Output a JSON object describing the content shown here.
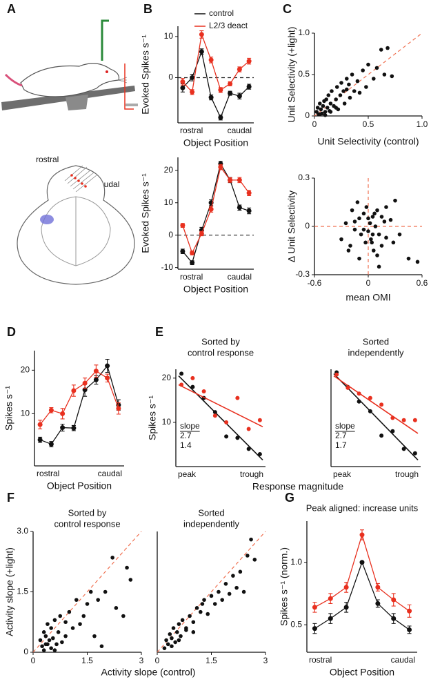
{
  "illustration": {
    "panel": "A",
    "rostral": "rostral",
    "caudal": "caudal"
  },
  "chart_data": [
    {
      "type": "line",
      "panel": "B",
      "ylabel": "Evoked Spikes s⁻¹",
      "xlabel": "Object Position",
      "x_end_labels": [
        "rostral",
        "caudal"
      ],
      "categories": [
        null,
        null,
        null,
        null,
        null,
        null,
        null,
        null
      ],
      "ylim": [
        -11,
        12.5
      ],
      "yticks": [
        0,
        10
      ],
      "hlines": [
        0
      ],
      "ref_color": "#222",
      "series": [
        {
          "name": "control",
          "color": "#111111",
          "values": [
            -2.5,
            0,
            6.3,
            -4.8,
            -9.7,
            -3.8,
            -4.5,
            -2.2
          ],
          "errors": [
            1,
            0.8,
            0.7,
            0.6,
            0.6,
            0.5,
            0.7,
            0.6
          ]
        },
        {
          "name": "L2/3 deact",
          "color": "#e8301f",
          "values": [
            -1,
            -3.5,
            10.5,
            4.3,
            -3,
            -1.5,
            2,
            4
          ],
          "errors": [
            0.8,
            0.6,
            0.9,
            0.7,
            0.6,
            0.5,
            0.6,
            0.7
          ]
        }
      ]
    },
    {
      "type": "line",
      "ylabel": "Evoked Spikes s⁻¹",
      "xlabel": "Object Position",
      "x_end_labels": [
        "rostral",
        "caudal"
      ],
      "categories": [
        null,
        null,
        null,
        null,
        null,
        null,
        null,
        null
      ],
      "ylim": [
        -10.5,
        24
      ],
      "yticks": [
        -10,
        0,
        10,
        20
      ],
      "hlines": [
        0
      ],
      "ref_color": "#222",
      "series": [
        {
          "color": "#111111",
          "values": [
            -5,
            -8.5,
            1.5,
            10,
            22,
            17,
            8.5,
            7.5
          ],
          "errors": [
            0.7,
            0.6,
            0.9,
            0.9,
            0.8,
            0.8,
            0.8,
            0.9
          ]
        },
        {
          "color": "#e8301f",
          "values": [
            3,
            -5.5,
            0.5,
            8,
            21,
            17,
            17,
            13
          ],
          "errors": [
            0.6,
            0.6,
            0.7,
            0.9,
            0.8,
            0.7,
            0.8,
            0.8
          ]
        }
      ]
    },
    {
      "type": "scatter",
      "panel": "C",
      "xlabel": "Unit Selectivity (control)",
      "ylabel": "Unit Selectivity (+light)",
      "xlim": [
        0,
        1
      ],
      "ylim": [
        0,
        1
      ],
      "xticks": [
        0,
        0.5,
        {
          "value": 1,
          "label": "1.0"
        }
      ],
      "yticks": [
        0,
        0.5,
        {
          "value": 1,
          "label": "1.0"
        }
      ],
      "diagonal": true,
      "ref_color": "#f07050",
      "series": [
        {
          "color": "#111111",
          "x": [
            0.02,
            0.03,
            0.04,
            0.05,
            0.06,
            0.07,
            0.08,
            0.09,
            0.1,
            0.11,
            0.12,
            0.13,
            0.14,
            0.15,
            0.16,
            0.18,
            0.2,
            0.21,
            0.22,
            0.24,
            0.25,
            0.27,
            0.28,
            0.3,
            0.32,
            0.33,
            0.35,
            0.37,
            0.4,
            0.42,
            0.45,
            0.48,
            0.5,
            0.55,
            0.58,
            0.62,
            0.65,
            0.68,
            0.72,
            0.05,
            0.1,
            0.15,
            0.2,
            0.3
          ],
          "y": [
            0.05,
            0.1,
            0.02,
            0.15,
            0.08,
            0.03,
            0.12,
            0.18,
            0.05,
            0.2,
            0.1,
            0.25,
            0.06,
            0.15,
            0.3,
            0.12,
            0.2,
            0.35,
            0.08,
            0.25,
            0.4,
            0.3,
            0.15,
            0.45,
            0.38,
            0.22,
            0.5,
            0.3,
            0.42,
            0.28,
            0.55,
            0.35,
            0.62,
            0.45,
            0.58,
            0.8,
            0.5,
            0.82,
            0.48,
            0.02,
            0.01,
            0.05,
            0.1,
            0.32
          ]
        }
      ]
    },
    {
      "type": "scatter",
      "xlabel": "mean OMI",
      "ylabel": "Δ Unit Selectivity",
      "xlim": [
        -0.6,
        0.6
      ],
      "ylim": [
        -0.3,
        0.3
      ],
      "xticks": [
        -0.6,
        0,
        0.6
      ],
      "yticks": [
        -0.3,
        0,
        0.3
      ],
      "hlines": [
        0
      ],
      "vlines": [
        0
      ],
      "ref_color": "#f07050",
      "series": [
        {
          "color": "#111111",
          "x": [
            -0.3,
            -0.25,
            -0.2,
            -0.18,
            -0.15,
            -0.12,
            -0.1,
            -0.08,
            -0.05,
            -0.03,
            -0.02,
            0,
            0.02,
            0.03,
            0.05,
            0.06,
            0.08,
            0.1,
            0.12,
            0.15,
            0.18,
            0.2,
            0.25,
            0.3,
            0.35,
            0.45,
            0.55,
            -0.22,
            -0.1,
            -0.05,
            0,
            0.04,
            0.07,
            0.1,
            0.15,
            0.2,
            -0.15,
            0.05,
            0.12,
            0.28
          ],
          "y": [
            -0.08,
            0.02,
            -0.12,
            0.1,
            -0.02,
            0.15,
            0.05,
            -0.05,
            0.08,
            -0.1,
            0.12,
            -0.03,
            0.02,
            -0.08,
            0.06,
            -0.15,
            0,
            0.1,
            -0.05,
            -0.12,
            0.03,
            -0.07,
            0.04,
            0.16,
            -0.05,
            -0.2,
            -0.22,
            -0.15,
            -0.2,
            -0.02,
            0.05,
            -0.1,
            0.08,
            -0.18,
            0.06,
            0.12,
            0.03,
            -0.05,
            -0.25,
            -0.1
          ]
        }
      ]
    },
    {
      "type": "line",
      "panel": "D",
      "ylabel": "Spikes s⁻¹",
      "xlabel": "Object Position",
      "x_end_labels": [
        "rostral",
        "caudal"
      ],
      "categories": [
        null,
        null,
        null,
        null,
        null,
        null,
        null,
        null
      ],
      "ylim": [
        -2,
        24.5
      ],
      "yticks": [
        10,
        20
      ],
      "series": [
        {
          "color": "#111111",
          "values": [
            4,
            3,
            6.8,
            6.7,
            15.5,
            17.8,
            21,
            12
          ],
          "errors": [
            0.6,
            0.6,
            0.8,
            0.6,
            1.5,
            1,
            1.5,
            1.2
          ]
        },
        {
          "color": "#e8301f",
          "values": [
            7.5,
            10.8,
            10,
            15.3,
            17,
            19.8,
            18.2,
            11.2
          ],
          "errors": [
            1,
            0.6,
            1.2,
            1.3,
            1.2,
            1.4,
            0.9,
            1.3
          ]
        }
      ]
    },
    {
      "type": "scatter",
      "panel": "E",
      "title": [
        "Sorted by",
        "control response"
      ],
      "ylabel": "Spikes s⁻¹",
      "xlabel": "Response magnitude",
      "x_end_labels": [
        "peak",
        "trough"
      ],
      "categories": [
        null,
        null,
        null,
        null,
        null,
        null,
        null,
        null
      ],
      "ylim": [
        0,
        22
      ],
      "yticks": [
        10,
        20
      ],
      "slope_label": "slope",
      "series": [
        {
          "color": "#111111",
          "values": [
            21,
            18,
            15.5,
            12.3,
            6.8,
            6.5,
            4,
            2.8
          ],
          "fit": [
            20.5,
            1.5
          ],
          "slope": 2.7
        },
        {
          "color": "#e8301f",
          "values": [
            18.5,
            20,
            17,
            11.5,
            10,
            15.5,
            8.5,
            10.5
          ],
          "fit": [
            18.5,
            9
          ],
          "slope": 1.4
        }
      ]
    },
    {
      "type": "scatter",
      "title": [
        "Sorted",
        "independently"
      ],
      "x_end_labels": [
        "peak",
        "trough"
      ],
      "categories": [
        null,
        null,
        null,
        null,
        null,
        null,
        null,
        null
      ],
      "ylim": [
        0,
        22
      ],
      "slope_label": "slope",
      "series": [
        {
          "color": "#111111",
          "values": [
            21.3,
            18,
            14.7,
            12.5,
            7,
            8,
            4,
            3
          ],
          "fit": [
            21,
            1.5
          ],
          "slope": 2.7
        },
        {
          "color": "#e8301f",
          "values": [
            20.8,
            17.8,
            16.5,
            15.5,
            14,
            11,
            10.5,
            10.5
          ],
          "fit": [
            20.5,
            7.5
          ],
          "slope": 1.7
        }
      ]
    },
    {
      "type": "scatter",
      "panel": "F",
      "title": [
        "Sorted by",
        "control response"
      ],
      "xlabel": "Activity slope (control)",
      "ylabel": "Activity slope (+light)",
      "xlim": [
        0,
        3
      ],
      "ylim": [
        0,
        3
      ],
      "xticks": [
        0,
        1.5,
        3
      ],
      "yticks": [
        0,
        1.5,
        {
          "value": 3,
          "label": "3.0"
        }
      ],
      "diagonal": true,
      "ref_color": "#f07050",
      "series": [
        {
          "color": "#111111",
          "x": [
            0.2,
            0.25,
            0.3,
            0.3,
            0.35,
            0.4,
            0.4,
            0.45,
            0.5,
            0.5,
            0.55,
            0.6,
            0.65,
            0.7,
            0.75,
            0.8,
            0.9,
            1.0,
            1.1,
            1.2,
            1.3,
            1.4,
            1.5,
            1.6,
            1.7,
            1.8,
            1.9,
            2.0,
            2.2,
            2.3,
            2.5,
            2.6,
            2.7,
            0.35,
            0.6,
            0.9
          ],
          "y": [
            0.3,
            0.15,
            0.5,
            0.05,
            0.4,
            0.2,
            0.7,
            0.3,
            0.1,
            0.6,
            0.35,
            0.8,
            0.2,
            0.5,
            0.9,
            0.25,
            0.4,
            1.0,
            0.6,
            1.3,
            0.7,
            0.9,
            1.2,
            1.5,
            0.4,
            1.3,
            0.15,
            1.5,
            2.35,
            1.1,
            0.9,
            2.1,
            1.8,
            0.2,
            0.05,
            0.75
          ]
        }
      ]
    },
    {
      "type": "scatter",
      "title": [
        "Sorted",
        "independently"
      ],
      "xlim": [
        0,
        3
      ],
      "ylim": [
        0,
        3
      ],
      "xticks": [
        0,
        1.5,
        3
      ],
      "diagonal": true,
      "ref_color": "#f07050",
      "series": [
        {
          "color": "#111111",
          "x": [
            0.2,
            0.25,
            0.3,
            0.35,
            0.4,
            0.45,
            0.5,
            0.55,
            0.6,
            0.65,
            0.7,
            0.8,
            0.9,
            1.0,
            1.1,
            1.2,
            1.3,
            1.4,
            1.5,
            1.6,
            1.7,
            1.8,
            1.9,
            2.0,
            2.1,
            2.2,
            2.3,
            2.4,
            2.5,
            2.6,
            2.7,
            0.4,
            0.6,
            0.8,
            1.0,
            1.25
          ],
          "y": [
            0.1,
            0.3,
            0.2,
            0.45,
            0.35,
            0.6,
            0.25,
            0.5,
            0.7,
            0.4,
            0.8,
            0.6,
            0.9,
            0.75,
            1.1,
            1.0,
            1.3,
            0.95,
            1.4,
            1.2,
            1.5,
            1.3,
            1.7,
            1.45,
            1.9,
            1.6,
            2.0,
            1.5,
            2.4,
            2.8,
            2.3,
            0.15,
            0.3,
            0.55,
            0.5,
            1.2
          ]
        }
      ]
    },
    {
      "type": "line",
      "panel": "G",
      "title": [
        "Peak aligned: increase units"
      ],
      "ylabel": "Spikes s⁻¹ (norm.)",
      "xlabel": "Object Position",
      "x_end_labels": [
        "rostral",
        "caudal"
      ],
      "categories": [
        null,
        null,
        null,
        null,
        null,
        null,
        null
      ],
      "ylim": [
        0.28,
        1.33
      ],
      "yticks": [
        0.5,
        {
          "value": 1,
          "label": "1.0"
        }
      ],
      "series": [
        {
          "color": "#111111",
          "values": [
            0.47,
            0.55,
            0.64,
            1.0,
            0.67,
            0.55,
            0.46
          ],
          "errors": [
            0.04,
            0.04,
            0.04,
            0,
            0.03,
            0.04,
            0.03
          ]
        },
        {
          "color": "#e8301f",
          "values": [
            0.64,
            0.71,
            0.8,
            1.22,
            0.8,
            0.7,
            0.61
          ],
          "errors": [
            0.04,
            0.04,
            0.04,
            0.04,
            0.03,
            0.05,
            0.05
          ]
        }
      ]
    }
  ]
}
